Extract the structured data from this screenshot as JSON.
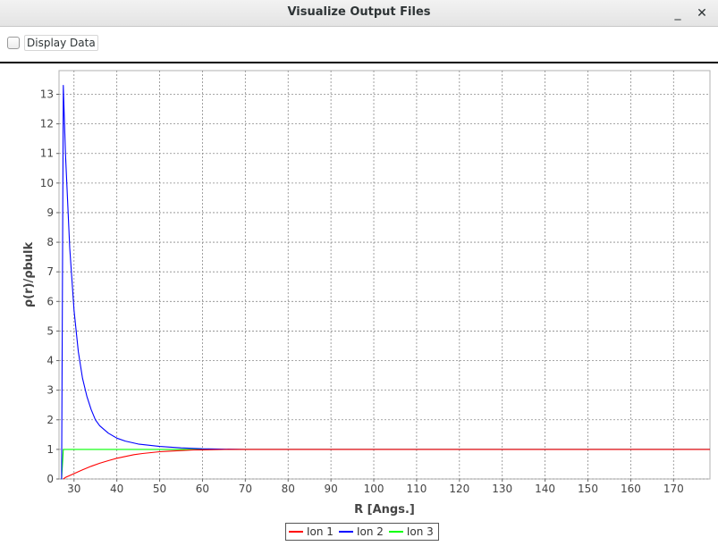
{
  "window": {
    "title": "Visualize Output Files",
    "minimize_glyph": "_",
    "close_glyph": "✕"
  },
  "toolbar": {
    "display_data_label": "Display Data",
    "display_data_checked": false
  },
  "chart_data": {
    "type": "line",
    "title": "",
    "xlabel": "R [Angs.]",
    "ylabel": "ρ(r)/ρbulk",
    "xlim": [
      26.5,
      178.5
    ],
    "ylim": [
      0,
      13.8
    ],
    "x_ticks": [
      30,
      40,
      50,
      60,
      70,
      80,
      90,
      100,
      110,
      120,
      130,
      140,
      150,
      160,
      170
    ],
    "y_ticks": [
      0,
      1,
      2,
      3,
      4,
      5,
      6,
      7,
      8,
      9,
      10,
      11,
      12,
      13
    ],
    "grid": true,
    "legend_position": "bottom-center",
    "series": [
      {
        "name": "Ion 1",
        "color": "#ff0000",
        "x": [
          27.5,
          28,
          30,
          32,
          34,
          36,
          38,
          40,
          42,
          44,
          46,
          48,
          50,
          52,
          55,
          58,
          60,
          65,
          70,
          80,
          100,
          178.5
        ],
        "y": [
          0.0,
          0.05,
          0.18,
          0.31,
          0.43,
          0.53,
          0.62,
          0.7,
          0.76,
          0.82,
          0.86,
          0.89,
          0.92,
          0.94,
          0.96,
          0.98,
          0.985,
          0.995,
          1.0,
          1.0,
          1.0,
          1.0
        ]
      },
      {
        "name": "Ion 2",
        "color": "#0000ff",
        "x": [
          27,
          27.1,
          27.5,
          28,
          29,
          30,
          31,
          32,
          33,
          34,
          35,
          36,
          38,
          40,
          42,
          45,
          50,
          55,
          60,
          70,
          80,
          100,
          178.5
        ],
        "y": [
          0.0,
          0.0,
          13.3,
          11.0,
          7.8,
          5.7,
          4.3,
          3.4,
          2.8,
          2.35,
          2.0,
          1.8,
          1.55,
          1.38,
          1.28,
          1.18,
          1.1,
          1.05,
          1.02,
          1.0,
          1.0,
          1.0,
          1.0
        ]
      },
      {
        "name": "Ion 3",
        "color": "#00ff00",
        "x": [
          27,
          27.1,
          27.5,
          178.5
        ],
        "y": [
          0.0,
          0.0,
          1.0,
          1.0
        ]
      }
    ]
  }
}
